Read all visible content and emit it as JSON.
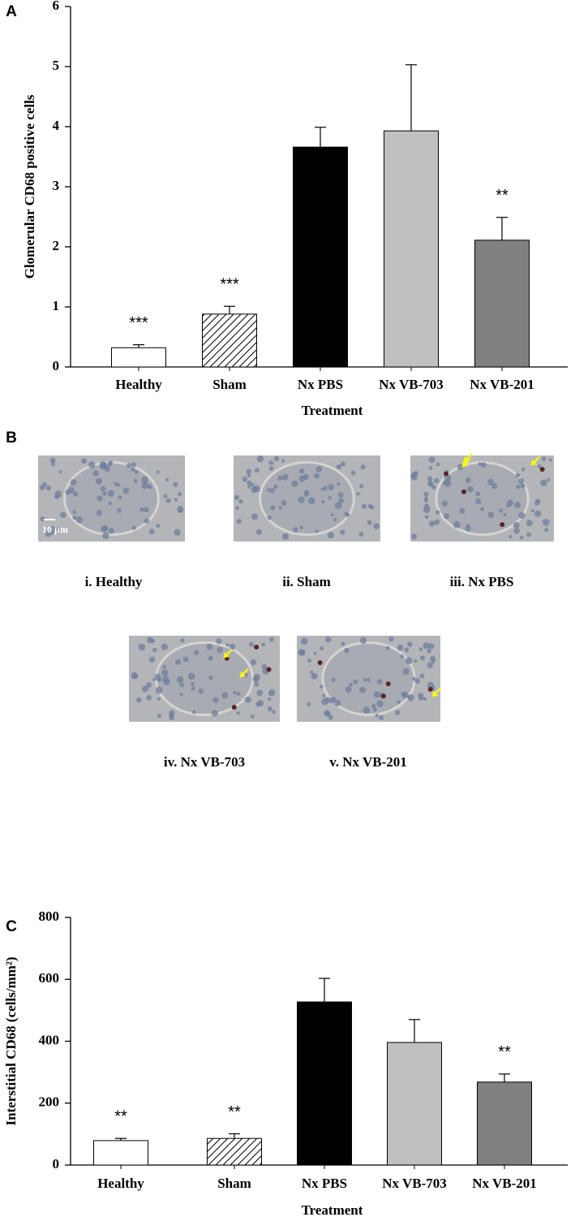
{
  "chart_data": [
    {
      "type": "bar",
      "panel": "A",
      "ylabel": "Glomerular CD68 positive cells",
      "xlabel": "Treatment",
      "categories": [
        "Healthy",
        "Sham",
        "Nx PBS",
        "Nx VB-703",
        "Nx VB-201"
      ],
      "values": [
        0.32,
        0.88,
        3.66,
        3.93,
        2.11
      ],
      "errors": [
        0.05,
        0.13,
        0.33,
        1.1,
        0.38
      ],
      "annotations": [
        "***",
        "***",
        null,
        null,
        "**"
      ],
      "colors": [
        "#ffffff",
        "#ffffff",
        "#000000",
        "#c0c0c0",
        "#808080"
      ],
      "hatch": [
        false,
        true,
        false,
        false,
        false
      ],
      "ylim": [
        0,
        6
      ],
      "yticks": [
        0,
        1,
        2,
        3,
        4,
        5,
        6
      ]
    },
    {
      "type": "bar",
      "panel": "C",
      "ylabel": "Interstitial CD68 (cells/mm²)",
      "xlabel": "Treatment",
      "categories": [
        "Healthy",
        "Sham",
        "Nx PBS",
        "Nx VB-703",
        "Nx VB-201"
      ],
      "values": [
        79,
        86,
        527,
        396,
        268
      ],
      "errors": [
        7,
        15,
        76,
        74,
        26
      ],
      "annotations": [
        "**",
        "**",
        null,
        null,
        "**"
      ],
      "colors": [
        "#ffffff",
        "#ffffff",
        "#000000",
        "#c0c0c0",
        "#808080"
      ],
      "hatch": [
        false,
        true,
        false,
        false,
        false
      ],
      "ylim": [
        0,
        800
      ],
      "yticks": [
        0,
        200,
        400,
        600,
        800
      ]
    }
  ],
  "panel_b": {
    "label": "B",
    "scale_bar": "10 µm",
    "images": [
      {
        "caption": "i. Healthy"
      },
      {
        "caption": "ii. Sham"
      },
      {
        "caption": "iii. Nx PBS"
      },
      {
        "caption": "iv. Nx VB-703"
      },
      {
        "caption": "v. Nx VB-201"
      }
    ]
  }
}
